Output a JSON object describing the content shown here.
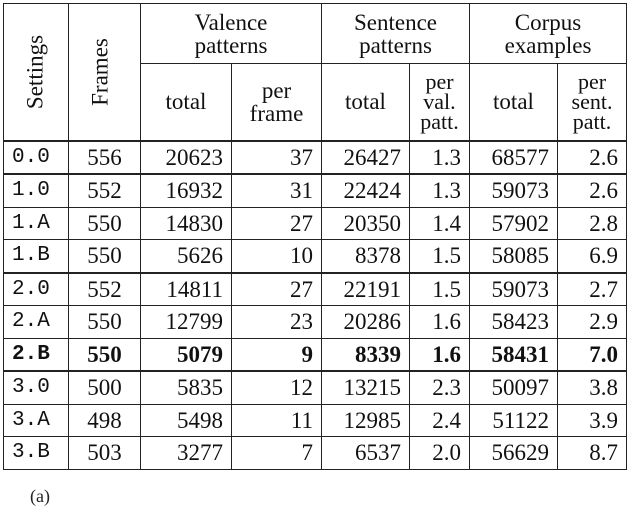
{
  "table": {
    "headers": {
      "settings": "Settings",
      "frames": "Frames",
      "valence": "Valence patterns",
      "sentence": "Sentence patterns",
      "corpus": "Corpus examples",
      "total": "total",
      "per_frame": "per frame",
      "per_val_patt": "per val. patt.",
      "per_sent_patt": "per sent. patt."
    },
    "rows": [
      [
        "0.0",
        "556",
        "20623",
        "37",
        "26427",
        "1.3",
        "68577",
        "2.6"
      ],
      [
        "1.0",
        "552",
        "16932",
        "31",
        "22424",
        "1.3",
        "59073",
        "2.6"
      ],
      [
        "1.A",
        "550",
        "14830",
        "27",
        "20350",
        "1.4",
        "57902",
        "2.8"
      ],
      [
        "1.B",
        "550",
        "5626",
        "10",
        "8378",
        "1.5",
        "58085",
        "6.9"
      ],
      [
        "2.0",
        "552",
        "14811",
        "27",
        "22191",
        "1.5",
        "59073",
        "2.7"
      ],
      [
        "2.A",
        "550",
        "12799",
        "23",
        "20286",
        "1.6",
        "58423",
        "2.9"
      ],
      [
        "2.B",
        "550",
        "5079",
        "9",
        "8339",
        "1.6",
        "58431",
        "7.0"
      ],
      [
        "3.0",
        "500",
        "5835",
        "12",
        "13215",
        "2.3",
        "50097",
        "3.8"
      ],
      [
        "3.A",
        "498",
        "5498",
        "11",
        "12985",
        "2.4",
        "51122",
        "3.9"
      ],
      [
        "3.B",
        "503",
        "3277",
        "7",
        "6537",
        "2.0",
        "56629",
        "8.7"
      ]
    ]
  },
  "caption": "(a)"
}
